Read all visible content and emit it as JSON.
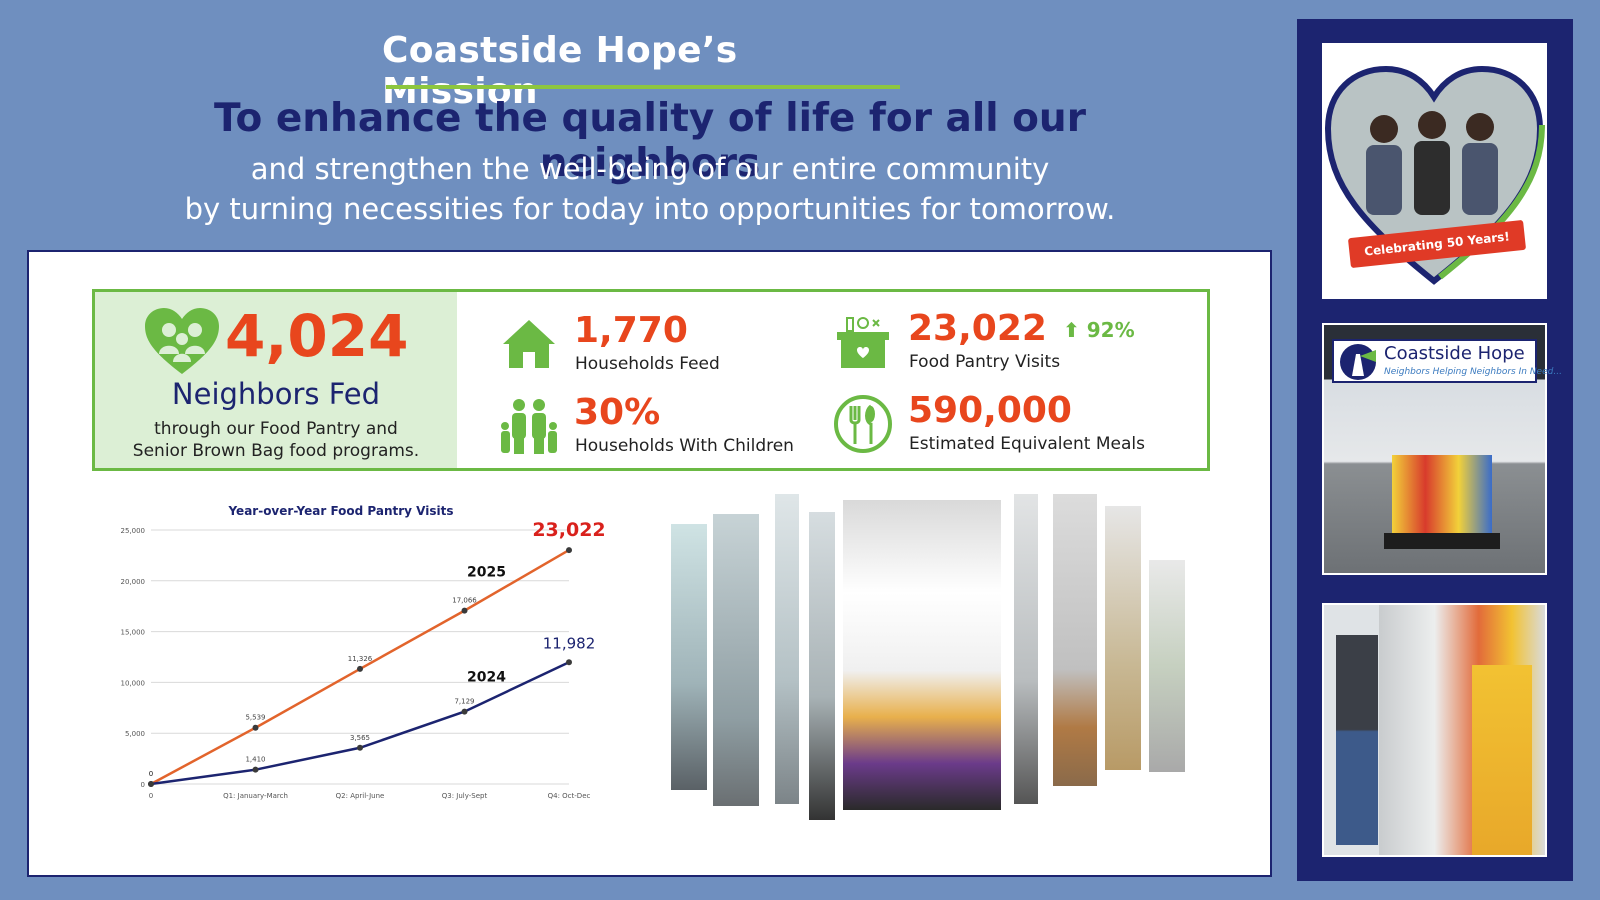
{
  "header": {
    "title": "Coastside Hope’s Mission",
    "headline": "To enhance the quality of life for all our neighbors",
    "line1": "and strengthen the well-being of our entire community",
    "line2": "by turning necessities for today into opportunities for tomorrow."
  },
  "stats": {
    "hero": {
      "value": "4,024",
      "label": "Neighbors Fed",
      "desc1": "through our Food Pantry and",
      "desc2": "Senior Brown Bag food programs.",
      "icon": "family-heart-icon"
    },
    "items": [
      {
        "value": "1,770",
        "label": "Households Feed",
        "icon": "house-icon"
      },
      {
        "value": "23,022",
        "label": "Food Pantry Visits",
        "icon": "grocery-box-icon",
        "trend": "92%"
      },
      {
        "value": "30%",
        "label": "Households With Children",
        "icon": "family-icon"
      },
      {
        "value": "590,000",
        "label": "Estimated Equivalent Meals",
        "icon": "plate-utensils-icon"
      }
    ]
  },
  "chart_data": {
    "type": "line",
    "title": "Year-over-Year Food Pantry Visits",
    "categories": [
      "0",
      "Q1: January-March",
      "Q2: April-June",
      "Q3: July-Sept",
      "Q4: Oct-Dec"
    ],
    "yticks": [
      "0",
      "5,000",
      "10,000",
      "15,000",
      "20,000",
      "25,000"
    ],
    "ylim": [
      0,
      25000
    ],
    "grid": true,
    "series": [
      {
        "name": "2025",
        "values": [
          0,
          5539,
          11326,
          17066,
          23022
        ],
        "labels": [
          "0",
          "5,539",
          "11,326",
          "17,066",
          "23,022"
        ],
        "color": "#e2642c"
      },
      {
        "name": "2024",
        "values": [
          0,
          1410,
          3565,
          7129,
          11982
        ],
        "labels": [
          "0",
          "1,410",
          "3,565",
          "7,129",
          "11,982"
        ],
        "color": "#1c2470"
      }
    ]
  },
  "photos": {
    "banner": "Celebrating 50 Years!",
    "sign_name": "Coastside Hope",
    "sign_tagline": "Neighbors Helping Neighbors In Need..."
  },
  "colors": {
    "background": "#6f8fbf",
    "navy": "#1c2470",
    "accent_orange": "#e8461d",
    "accent_green": "#6bb944"
  }
}
